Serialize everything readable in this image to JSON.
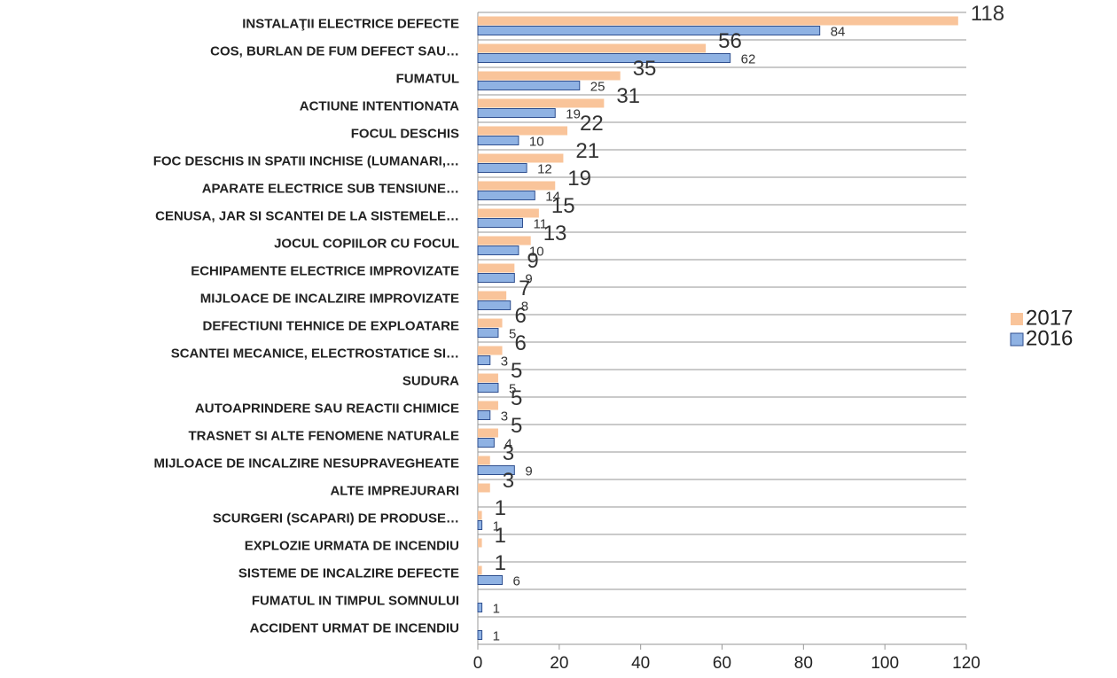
{
  "chart_data": {
    "type": "bar",
    "orientation": "horizontal",
    "categories": [
      "INSTALAŢII ELECTRICE DEFECTE",
      "COS, BURLAN DE FUM DEFECT SAU…",
      "FUMATUL",
      "ACTIUNE INTENTIONATA",
      "FOCUL DESCHIS",
      "FOC DESCHIS IN SPATII INCHISE (LUMANARI,…",
      "APARATE ELECTRICE SUB TENSIUNE…",
      "CENUSA, JAR SI SCANTEI DE LA SISTEMELE…",
      "JOCUL COPIILOR CU FOCUL",
      "ECHIPAMENTE ELECTRICE IMPROVIZATE",
      "MIJLOACE DE INCALZIRE IMPROVIZATE",
      "DEFECTIUNI TEHNICE DE EXPLOATARE",
      "SCANTEI MECANICE, ELECTROSTATICE SI…",
      "SUDURA",
      "AUTOAPRINDERE SAU REACTII CHIMICE",
      "TRASNET SI ALTE FENOMENE NATURALE",
      "MIJLOACE DE INCALZIRE NESUPRAVEGHEATE",
      "ALTE IMPREJURARI",
      "SCURGERI (SCAPARI) DE PRODUSE…",
      "EXPLOZIE URMATA DE INCENDIU",
      "SISTEME DE INCALZIRE DEFECTE",
      "FUMATUL IN TIMPUL SOMNULUI",
      "ACCIDENT URMAT DE INCENDIU"
    ],
    "series": [
      {
        "name": "2017",
        "color": "#f9c49a",
        "values": [
          118,
          56,
          35,
          31,
          22,
          21,
          19,
          15,
          13,
          9,
          7,
          6,
          6,
          5,
          5,
          5,
          3,
          3,
          1,
          1,
          1,
          null,
          null
        ]
      },
      {
        "name": "2016",
        "color": "#8fb2e3",
        "values": [
          84,
          62,
          25,
          19,
          10,
          12,
          14,
          11,
          10,
          9,
          8,
          5,
          3,
          5,
          3,
          4,
          9,
          null,
          1,
          null,
          6,
          1,
          1
        ]
      }
    ],
    "xlim": [
      0,
      120
    ],
    "xticks": [
      0,
      20,
      40,
      60,
      80,
      100,
      120
    ],
    "legend": "right"
  }
}
